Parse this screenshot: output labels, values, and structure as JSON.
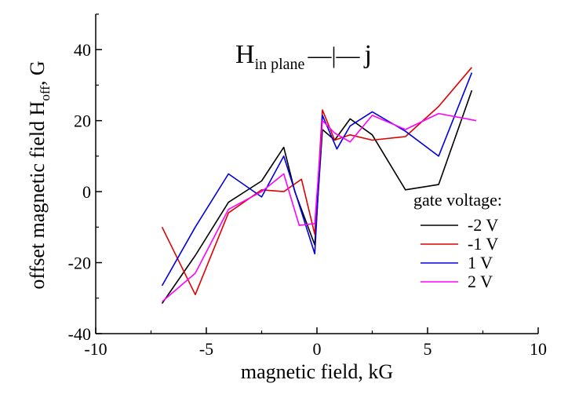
{
  "chart_data": {
    "type": "line",
    "title": "",
    "annotation": {
      "main": "H",
      "subscript": "in plane",
      "symbol": "—|—",
      "tail": "j"
    },
    "xlabel": "magnetic field, kG",
    "ylabel": {
      "main": "offset magnetic field H",
      "subscript": "off",
      "tail": ", G"
    },
    "xlim": [
      -10,
      10
    ],
    "ylim": [
      -40,
      50
    ],
    "xticks": [
      -10,
      -5,
      0,
      5,
      10
    ],
    "yticks": [
      -40,
      -20,
      0,
      20,
      40
    ],
    "grid": false,
    "legend": {
      "title": "gate voltage:",
      "placement": "right"
    },
    "series": [
      {
        "name": "-2 V",
        "color": "#000000",
        "x": [
          -7.0,
          -5.5,
          -4.0,
          -2.5,
          -1.5,
          -1.0,
          -0.1,
          0.25,
          0.8,
          1.5,
          2.5,
          4.0,
          5.5,
          7.0
        ],
        "y": [
          -31.5,
          -18,
          -3,
          3,
          12.5,
          0,
          -15,
          17.5,
          14.5,
          20.5,
          16,
          0.5,
          2,
          28.5
        ]
      },
      {
        "name": "-1 V",
        "color": "#e00000",
        "x": [
          -7.0,
          -5.5,
          -4.0,
          -2.5,
          -1.5,
          -0.7,
          -0.1,
          0.25,
          0.8,
          1.5,
          2.5,
          4.0,
          5.5,
          7.0
        ],
        "y": [
          -10,
          -29,
          -6,
          0.5,
          0,
          3.5,
          -12,
          23,
          14.5,
          16,
          14.5,
          15.5,
          24,
          35
        ]
      },
      {
        "name": "1 V",
        "color": "#0000e0",
        "x": [
          -7.0,
          -5.5,
          -4.0,
          -2.5,
          -1.5,
          -0.1,
          0.25,
          0.9,
          1.5,
          2.5,
          4.0,
          5.5,
          7.0
        ],
        "y": [
          -26.5,
          -10,
          5,
          -1.5,
          10,
          -17.5,
          21.5,
          12,
          18.5,
          22.5,
          17,
          10,
          33.5
        ]
      },
      {
        "name": "2 V",
        "color": "#ff00ff",
        "x": [
          -7.0,
          -5.5,
          -4.0,
          -2.5,
          -1.5,
          -0.8,
          -0.1,
          0.25,
          0.8,
          1.5,
          2.5,
          4.0,
          5.5,
          7.2
        ],
        "y": [
          -31,
          -23,
          -5,
          0,
          5,
          -9.5,
          -9,
          20,
          16.5,
          14,
          21.5,
          17.5,
          22,
          20
        ]
      }
    ]
  }
}
